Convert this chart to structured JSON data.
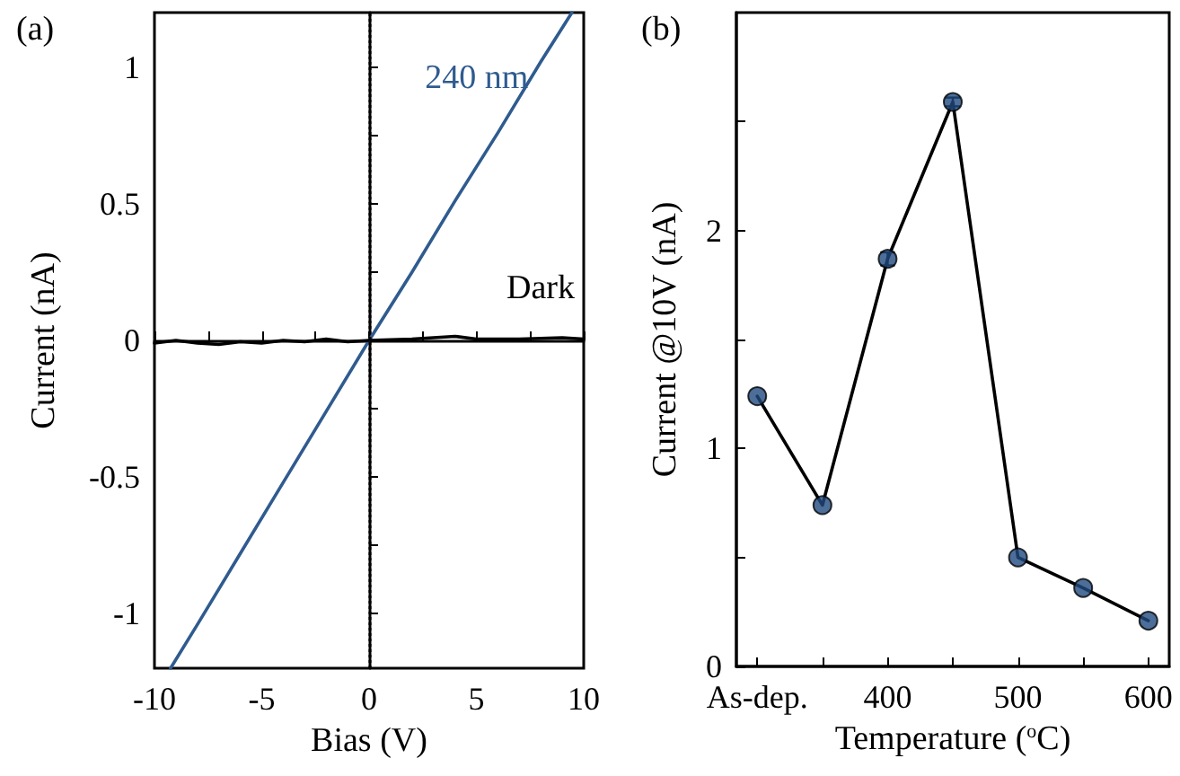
{
  "chart_data": [
    {
      "type": "line",
      "title": "(a)",
      "xlabel": "Bias (V)",
      "ylabel": "Current (nA)",
      "xlim": [
        -10,
        10
      ],
      "ylim": [
        -1.2,
        1.2
      ],
      "xticks": [
        -10,
        {
          "value": -7.5,
          "label": null
        },
        -5,
        {
          "value": -2.5,
          "label": null
        },
        0,
        {
          "value": 2.5,
          "label": null
        },
        5,
        {
          "value": 7.5,
          "label": null
        },
        10
      ],
      "yticks": [
        -1,
        {
          "value": -0.75,
          "label": null
        },
        -0.5,
        {
          "value": -0.25,
          "label": null
        },
        0,
        {
          "value": 0.25,
          "label": null
        },
        0.5,
        {
          "value": 0.75,
          "label": null
        },
        1
      ],
      "series": [
        {
          "color": "#2f5b8f",
          "x": [
            -9.25,
            -8,
            -6,
            -4,
            -2,
            0,
            2,
            4,
            6,
            8,
            9.45
          ],
          "values": [
            -1.2,
            -1.04,
            -0.78,
            -0.52,
            -0.26,
            0,
            0.25,
            0.51,
            0.76,
            1.02,
            1.2
          ]
        },
        {
          "color": "#000000",
          "x": [
            -10,
            -9,
            -8,
            -7,
            -6,
            -5,
            -4,
            -3,
            -2,
            -1,
            0,
            2,
            4,
            5,
            7,
            9,
            10
          ],
          "values": [
            -0.01,
            0,
            -0.01,
            -0.015,
            -0.005,
            -0.01,
            0,
            -0.005,
            0.005,
            -0.005,
            0,
            0.005,
            0.015,
            0.005,
            0.005,
            0.01,
            0.005
          ]
        }
      ],
      "annotations": [
        "240 nm",
        "Dark"
      ],
      "ref_lines": [
        {
          "axis": "x",
          "value": 0,
          "color": "#000000",
          "line_style": "dotted"
        }
      ],
      "marker": "none"
    },
    {
      "type": "scatter",
      "title": "(b)",
      "xlabel": "Temperature ($^{o}$C)",
      "ylabel": "Current @10V (nA)",
      "xlim": [
        284,
        616
      ],
      "ylim": [
        0,
        3
      ],
      "xticks": [
        {
          "value": 300,
          "label": "As-dep."
        },
        {
          "value": 350,
          "label": null
        },
        400,
        {
          "value": 450,
          "label": null
        },
        500,
        {
          "value": 550,
          "label": null
        },
        600
      ],
      "yticks": [
        0,
        {
          "value": 0.5,
          "label": null
        },
        1,
        {
          "value": 1.5,
          "label": null
        },
        2,
        {
          "value": 2.5,
          "label": null
        }
      ],
      "series": [
        {
          "type": "line",
          "color": "#000000",
          "marker": "none",
          "x": [
            300,
            350,
            400,
            450,
            500,
            550,
            600
          ],
          "values": [
            1.24,
            0.74,
            1.87,
            2.59,
            0.5,
            0.36,
            0.21
          ]
        },
        {
          "color": "#1f4a7f",
          "marker": "circle",
          "x": [
            300,
            350,
            400,
            450,
            500,
            550,
            600
          ],
          "values": [
            1.24,
            0.74,
            1.87,
            2.59,
            0.5,
            0.36,
            0.21
          ],
          "errors": [
            null,
            null,
            0.03,
            0.02,
            null,
            null,
            null
          ]
        }
      ]
    }
  ]
}
